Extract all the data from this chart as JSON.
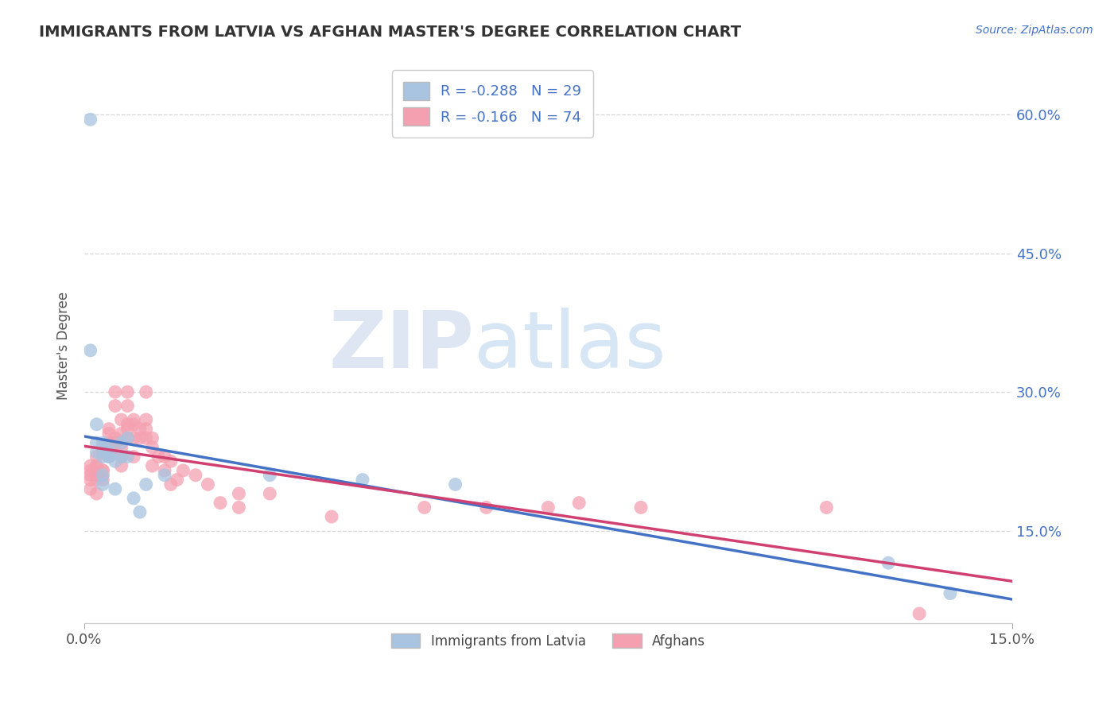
{
  "title": "IMMIGRANTS FROM LATVIA VS AFGHAN MASTER'S DEGREE CORRELATION CHART",
  "source": "Source: ZipAtlas.com",
  "ylabel": "Master's Degree",
  "legend_label1": "Immigrants from Latvia",
  "legend_label2": "Afghans",
  "r1": -0.288,
  "n1": 29,
  "r2": -0.166,
  "n2": 74,
  "color1": "#a8c4e0",
  "color2": "#f4a0b0",
  "line_color1": "#4472c4",
  "line_color2": "#d04070",
  "watermark_zip": "ZIP",
  "watermark_atlas": "atlas",
  "xmin": 0.0,
  "xmax": 0.15,
  "ymin": 0.05,
  "ymax": 0.65,
  "yticks": [
    0.15,
    0.3,
    0.45,
    0.6
  ],
  "ytick_labels": [
    "15.0%",
    "30.0%",
    "45.0%",
    "60.0%"
  ],
  "scatter1_x": [
    0.001,
    0.001,
    0.002,
    0.002,
    0.002,
    0.003,
    0.003,
    0.003,
    0.004,
    0.003,
    0.003,
    0.004,
    0.004,
    0.004,
    0.005,
    0.005,
    0.006,
    0.006,
    0.007,
    0.007,
    0.008,
    0.009,
    0.01,
    0.013,
    0.03,
    0.045,
    0.06,
    0.13,
    0.14
  ],
  "scatter1_y": [
    0.595,
    0.345,
    0.265,
    0.245,
    0.235,
    0.245,
    0.24,
    0.23,
    0.24,
    0.21,
    0.2,
    0.235,
    0.23,
    0.23,
    0.195,
    0.225,
    0.245,
    0.23,
    0.23,
    0.25,
    0.185,
    0.17,
    0.2,
    0.21,
    0.21,
    0.205,
    0.2,
    0.115,
    0.082
  ],
  "scatter2_x": [
    0.001,
    0.001,
    0.001,
    0.001,
    0.001,
    0.002,
    0.002,
    0.002,
    0.002,
    0.002,
    0.002,
    0.002,
    0.003,
    0.003,
    0.003,
    0.003,
    0.003,
    0.003,
    0.004,
    0.004,
    0.004,
    0.004,
    0.004,
    0.005,
    0.005,
    0.005,
    0.005,
    0.005,
    0.005,
    0.006,
    0.006,
    0.006,
    0.006,
    0.006,
    0.006,
    0.007,
    0.007,
    0.007,
    0.007,
    0.007,
    0.008,
    0.008,
    0.008,
    0.008,
    0.009,
    0.009,
    0.01,
    0.01,
    0.01,
    0.01,
    0.011,
    0.011,
    0.011,
    0.012,
    0.013,
    0.013,
    0.014,
    0.014,
    0.015,
    0.016,
    0.018,
    0.02,
    0.022,
    0.025,
    0.025,
    0.03,
    0.04,
    0.055,
    0.065,
    0.075,
    0.08,
    0.09,
    0.12,
    0.135
  ],
  "scatter2_y": [
    0.195,
    0.205,
    0.21,
    0.22,
    0.215,
    0.19,
    0.205,
    0.21,
    0.22,
    0.22,
    0.23,
    0.21,
    0.205,
    0.215,
    0.235,
    0.24,
    0.215,
    0.21,
    0.23,
    0.245,
    0.255,
    0.26,
    0.24,
    0.235,
    0.245,
    0.25,
    0.285,
    0.3,
    0.24,
    0.27,
    0.255,
    0.245,
    0.24,
    0.22,
    0.23,
    0.265,
    0.285,
    0.3,
    0.26,
    0.25,
    0.27,
    0.265,
    0.25,
    0.23,
    0.26,
    0.25,
    0.26,
    0.25,
    0.27,
    0.3,
    0.25,
    0.24,
    0.22,
    0.23,
    0.23,
    0.215,
    0.225,
    0.2,
    0.205,
    0.215,
    0.21,
    0.2,
    0.18,
    0.19,
    0.175,
    0.19,
    0.165,
    0.175,
    0.175,
    0.175,
    0.18,
    0.175,
    0.175,
    0.06
  ]
}
